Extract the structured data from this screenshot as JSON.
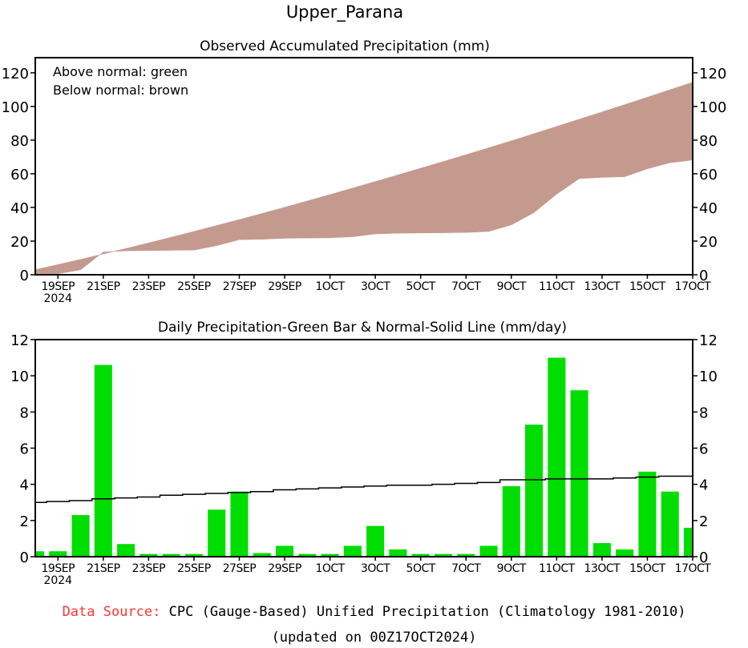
{
  "title": "Upper_Parana",
  "footer": {
    "source_label": "Data Source:",
    "source_text": "CPC (Gauge-Based) Unified Precipitation (Climatology 1981-2010)",
    "updated": "(updated on 00Z17OCT2024)",
    "source_label_color": "#ff3333"
  },
  "chart_data": [
    {
      "type": "area",
      "title": "Observed Accumulated Precipitation (mm)",
      "annotations": [
        "Above normal: green",
        "Below normal: brown"
      ],
      "ylim": [
        0,
        129
      ],
      "yticks": [
        0,
        20,
        40,
        60,
        80,
        100,
        120
      ],
      "xtick_labels": [
        "19SEP",
        "21SEP",
        "23SEP",
        "25SEP",
        "27SEP",
        "29SEP",
        "1OCT",
        "3OCT",
        "5OCT",
        "7OCT",
        "9OCT",
        "11OCT",
        "13OCT",
        "15OCT",
        "17OCT"
      ],
      "year_label": "2024",
      "days": [
        "18SEP",
        "19SEP",
        "20SEP",
        "21SEP",
        "22SEP",
        "23SEP",
        "24SEP",
        "25SEP",
        "26SEP",
        "27SEP",
        "28SEP",
        "29SEP",
        "30SEP",
        "1OCT",
        "2OCT",
        "3OCT",
        "4OCT",
        "5OCT",
        "6OCT",
        "7OCT",
        "8OCT",
        "9OCT",
        "10OCT",
        "11OCT",
        "12OCT",
        "13OCT",
        "14OCT",
        "15OCT",
        "16OCT",
        "17OCT"
      ],
      "observed": [
        0.3,
        0.6,
        2.9,
        13.5,
        14.2,
        14.35,
        14.5,
        14.65,
        17.25,
        20.85,
        21.05,
        21.65,
        21.8,
        21.95,
        22.55,
        24.25,
        24.65,
        24.8,
        24.95,
        25.1,
        25.7,
        29.6,
        36.9,
        47.9,
        57.1,
        57.85,
        58.25,
        62.95,
        66.55,
        68.15
      ],
      "normal": [
        3.0,
        6.05,
        9.15,
        12.35,
        15.6,
        18.9,
        22.3,
        25.75,
        29.25,
        32.8,
        36.4,
        40.1,
        43.85,
        47.65,
        51.5,
        55.4,
        59.35,
        63.3,
        67.3,
        71.35,
        75.45,
        79.6,
        83.85,
        88.15,
        92.45,
        96.75,
        101.1,
        105.5,
        109.95,
        114.4
      ],
      "colors": {
        "above": "#00dd00",
        "below": "#c49a8f"
      }
    },
    {
      "type": "bar",
      "title": "Daily Precipitation-Green Bar & Normal-Solid Line (mm/day)",
      "ylim": [
        0,
        12
      ],
      "yticks": [
        0,
        2,
        4,
        6,
        8,
        10,
        12
      ],
      "xtick_labels": [
        "19SEP",
        "21SEP",
        "23SEP",
        "25SEP",
        "27SEP",
        "29SEP",
        "1OCT",
        "3OCT",
        "5OCT",
        "7OCT",
        "9OCT",
        "11OCT",
        "13OCT",
        "15OCT",
        "17OCT"
      ],
      "year_label": "2024",
      "values": [
        0.3,
        0.3,
        2.3,
        10.6,
        0.7,
        0.15,
        0.15,
        0.15,
        2.6,
        3.6,
        0.2,
        0.6,
        0.15,
        0.15,
        0.6,
        1.7,
        0.4,
        0.15,
        0.15,
        0.15,
        0.6,
        3.9,
        7.3,
        11.0,
        9.2,
        0.75,
        0.4,
        4.7,
        3.6,
        1.6
      ],
      "normal": [
        3.0,
        3.05,
        3.1,
        3.2,
        3.25,
        3.3,
        3.4,
        3.45,
        3.5,
        3.55,
        3.6,
        3.7,
        3.75,
        3.8,
        3.85,
        3.9,
        3.95,
        3.95,
        4.0,
        4.05,
        4.1,
        4.25,
        4.25,
        4.3,
        4.3,
        4.3,
        4.35,
        4.4,
        4.45,
        4.45
      ],
      "colors": {
        "bar": "#00dd00",
        "line": "#000000"
      }
    }
  ]
}
